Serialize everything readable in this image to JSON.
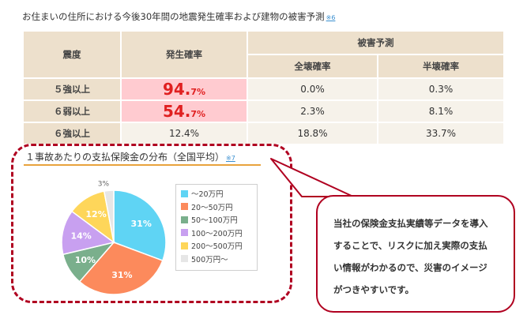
{
  "header": {
    "title": "お住まいの住所における今後30年間の地震発生確率および建物の被害予測",
    "note": "※6"
  },
  "table": {
    "col_intensity": "震度",
    "col_probability": "発生確率",
    "col_damage": "被害予測",
    "col_full": "全壊確率",
    "col_half": "半壊確率",
    "rows": [
      {
        "label": "５強以上",
        "prob_num": "94.",
        "prob_unit": "7%",
        "full": "0.0%",
        "half": "0.3%"
      },
      {
        "label": "６弱以上",
        "prob_num": "54.",
        "prob_unit": "7%",
        "full": "2.3%",
        "half": "8.1%"
      },
      {
        "label": "６強以上",
        "prob": "12.4%",
        "full": "18.8%",
        "half": "33.7%"
      }
    ]
  },
  "chart_section": {
    "title": "１事故あたりの支払保険金の分布（全国平均）",
    "note": "※7"
  },
  "chart_data": {
    "type": "pie",
    "categories": [
      "～20万円",
      "20～50万円",
      "50～100万円",
      "100～200万円",
      "200～500万円",
      "500万円～"
    ],
    "values": [
      31,
      31,
      10,
      14,
      12,
      3
    ],
    "labels": [
      "31%",
      "31%",
      "10%",
      "14%",
      "12%",
      "3%"
    ],
    "colors": [
      "#5fd4f4",
      "#fc8a5c",
      "#7aaf8c",
      "#c8a0f0",
      "#fed65a",
      "#e6e6e6"
    ],
    "legend_position": "right"
  },
  "callout": {
    "lines": [
      "当社の保険金支払実績等データを導入",
      "することで、リスクに加え実際の支払",
      "い情報がわかるので、災害のイメージ",
      "がつきやすいです。"
    ]
  }
}
